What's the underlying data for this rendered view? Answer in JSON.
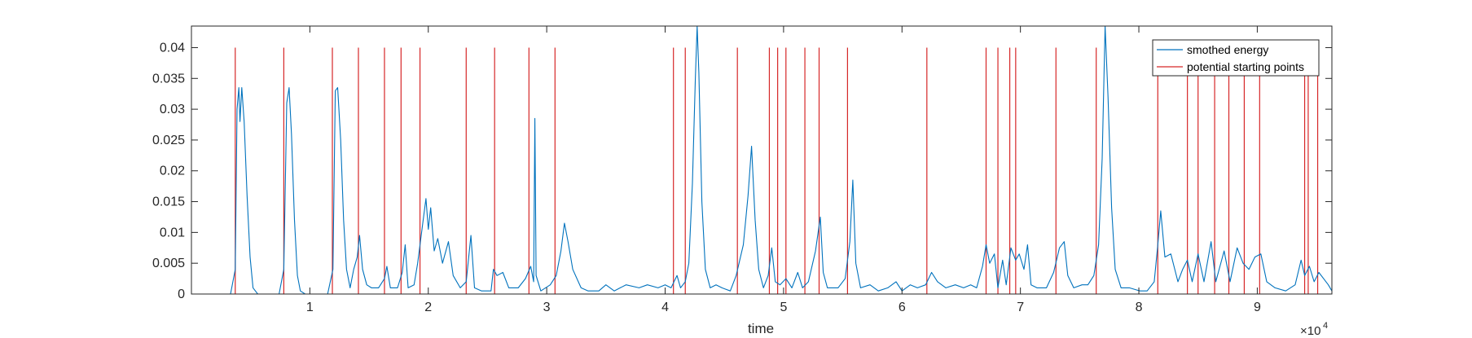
{
  "chart_data": {
    "type": "line",
    "xlabel": "time",
    "x_exponent_label": {
      "base": "×10",
      "exponent": "4"
    },
    "xlim": [
      0,
      96300
    ],
    "ylim": [
      0,
      0.0435
    ],
    "grid": false,
    "legend_position": "top-right",
    "x_ticks": [
      10000,
      20000,
      30000,
      40000,
      50000,
      60000,
      70000,
      80000,
      90000
    ],
    "x_tick_labels": [
      "1",
      "2",
      "3",
      "4",
      "5",
      "6",
      "7",
      "8",
      "9"
    ],
    "y_ticks": [
      0,
      0.005,
      0.01,
      0.015,
      0.02,
      0.025,
      0.03,
      0.035,
      0.04
    ],
    "y_tick_labels": [
      "0",
      "0.005",
      "0.01",
      "0.015",
      "0.02",
      "0.025",
      "0.03",
      "0.035",
      "0.04"
    ],
    "series": [
      {
        "name": "smothed energy",
        "color": "#0072BD",
        "kind": "line",
        "points": [
          [
            0,
            0
          ],
          [
            3300,
            0
          ],
          [
            3700,
            0.004
          ],
          [
            3850,
            0.03
          ],
          [
            4000,
            0.0335
          ],
          [
            4100,
            0.028
          ],
          [
            4250,
            0.0335
          ],
          [
            4450,
            0.028
          ],
          [
            4700,
            0.016
          ],
          [
            4950,
            0.006
          ],
          [
            5200,
            0.001
          ],
          [
            5600,
            0
          ],
          [
            7400,
            0
          ],
          [
            7800,
            0.004
          ],
          [
            8050,
            0.031
          ],
          [
            8250,
            0.0335
          ],
          [
            8450,
            0.026
          ],
          [
            8700,
            0.012
          ],
          [
            8950,
            0.003
          ],
          [
            9200,
            0.0005
          ],
          [
            9600,
            0
          ],
          [
            11500,
            0
          ],
          [
            11950,
            0.004
          ],
          [
            12150,
            0.033
          ],
          [
            12350,
            0.0335
          ],
          [
            12600,
            0.025
          ],
          [
            12850,
            0.012
          ],
          [
            13100,
            0.004
          ],
          [
            13400,
            0.001
          ],
          [
            13700,
            0.004
          ],
          [
            14000,
            0.006
          ],
          [
            14200,
            0.0095
          ],
          [
            14450,
            0.004
          ],
          [
            14800,
            0.0015
          ],
          [
            15200,
            0.001
          ],
          [
            15800,
            0.001
          ],
          [
            16300,
            0.0025
          ],
          [
            16500,
            0.0045
          ],
          [
            16800,
            0.001
          ],
          [
            17400,
            0.001
          ],
          [
            17800,
            0.0035
          ],
          [
            18050,
            0.008
          ],
          [
            18300,
            0.001
          ],
          [
            18800,
            0.0015
          ],
          [
            19100,
            0.005
          ],
          [
            19500,
            0.011
          ],
          [
            19800,
            0.0155
          ],
          [
            20000,
            0.0105
          ],
          [
            20200,
            0.014
          ],
          [
            20500,
            0.007
          ],
          [
            20800,
            0.009
          ],
          [
            21200,
            0.005
          ],
          [
            21700,
            0.0085
          ],
          [
            22100,
            0.003
          ],
          [
            22700,
            0.001
          ],
          [
            23200,
            0.002
          ],
          [
            23600,
            0.0095
          ],
          [
            23900,
            0.001
          ],
          [
            24500,
            0.0005
          ],
          [
            25300,
            0.0005
          ],
          [
            25500,
            0.004
          ],
          [
            25800,
            0.003
          ],
          [
            26300,
            0.0035
          ],
          [
            26800,
            0.001
          ],
          [
            27600,
            0.001
          ],
          [
            28200,
            0.0025
          ],
          [
            28650,
            0.0045
          ],
          [
            28900,
            0.002
          ],
          [
            29000,
            0.0285
          ],
          [
            29100,
            0.003
          ],
          [
            29500,
            0.0005
          ],
          [
            30300,
            0.0015
          ],
          [
            30800,
            0.003
          ],
          [
            31200,
            0.007
          ],
          [
            31500,
            0.0115
          ],
          [
            31800,
            0.0085
          ],
          [
            32200,
            0.004
          ],
          [
            32900,
            0.001
          ],
          [
            33500,
            0.0005
          ],
          [
            34400,
            0.0005
          ],
          [
            35000,
            0.0015
          ],
          [
            35700,
            0.0005
          ],
          [
            36700,
            0.0015
          ],
          [
            37800,
            0.001
          ],
          [
            38500,
            0.0015
          ],
          [
            39400,
            0.001
          ],
          [
            40000,
            0.0015
          ],
          [
            40500,
            0.001
          ],
          [
            41000,
            0.003
          ],
          [
            41300,
            0.001
          ],
          [
            41700,
            0.002
          ],
          [
            42000,
            0.005
          ],
          [
            42300,
            0.018
          ],
          [
            42550,
            0.035
          ],
          [
            42700,
            0.0435
          ],
          [
            42850,
            0.036
          ],
          [
            43100,
            0.015
          ],
          [
            43400,
            0.004
          ],
          [
            43800,
            0.001
          ],
          [
            44300,
            0.0015
          ],
          [
            44800,
            0.001
          ],
          [
            45500,
            0.0005
          ],
          [
            46000,
            0.003
          ],
          [
            46600,
            0.008
          ],
          [
            47000,
            0.016
          ],
          [
            47300,
            0.024
          ],
          [
            47600,
            0.012
          ],
          [
            47900,
            0.004
          ],
          [
            48300,
            0.001
          ],
          [
            48700,
            0.003
          ],
          [
            49000,
            0.0075
          ],
          [
            49300,
            0.002
          ],
          [
            49700,
            0.0015
          ],
          [
            50200,
            0.0025
          ],
          [
            50700,
            0.001
          ],
          [
            51200,
            0.0035
          ],
          [
            51600,
            0.001
          ],
          [
            52100,
            0.002
          ],
          [
            52700,
            0.007
          ],
          [
            53100,
            0.0125
          ],
          [
            53350,
            0.0035
          ],
          [
            53700,
            0.001
          ],
          [
            54600,
            0.001
          ],
          [
            55200,
            0.0025
          ],
          [
            55600,
            0.0085
          ],
          [
            55850,
            0.0185
          ],
          [
            56100,
            0.005
          ],
          [
            56500,
            0.001
          ],
          [
            57300,
            0.0015
          ],
          [
            58000,
            0.0005
          ],
          [
            58800,
            0.001
          ],
          [
            59500,
            0.002
          ],
          [
            60000,
            0.0005
          ],
          [
            60700,
            0.0015
          ],
          [
            61300,
            0.001
          ],
          [
            62000,
            0.0015
          ],
          [
            62500,
            0.0035
          ],
          [
            63000,
            0.002
          ],
          [
            63700,
            0.001
          ],
          [
            64500,
            0.0015
          ],
          [
            65200,
            0.001
          ],
          [
            65800,
            0.0015
          ],
          [
            66300,
            0.001
          ],
          [
            66800,
            0.0045
          ],
          [
            67100,
            0.008
          ],
          [
            67400,
            0.005
          ],
          [
            67800,
            0.0065
          ],
          [
            68100,
            0.001
          ],
          [
            68500,
            0.0055
          ],
          [
            68800,
            0.0015
          ],
          [
            69200,
            0.0075
          ],
          [
            69600,
            0.0055
          ],
          [
            69900,
            0.0065
          ],
          [
            70300,
            0.004
          ],
          [
            70600,
            0.008
          ],
          [
            70900,
            0.0015
          ],
          [
            71400,
            0.001
          ],
          [
            72200,
            0.001
          ],
          [
            72800,
            0.0035
          ],
          [
            73300,
            0.0075
          ],
          [
            73700,
            0.0085
          ],
          [
            74000,
            0.003
          ],
          [
            74500,
            0.001
          ],
          [
            75200,
            0.0015
          ],
          [
            75700,
            0.0015
          ],
          [
            76200,
            0.003
          ],
          [
            76600,
            0.008
          ],
          [
            76900,
            0.022
          ],
          [
            77150,
            0.0435
          ],
          [
            77400,
            0.032
          ],
          [
            77700,
            0.014
          ],
          [
            78000,
            0.004
          ],
          [
            78500,
            0.001
          ],
          [
            79200,
            0.001
          ],
          [
            80100,
            0.0005
          ],
          [
            80700,
            0.0005
          ],
          [
            81300,
            0.002
          ],
          [
            81600,
            0.008
          ],
          [
            81850,
            0.0135
          ],
          [
            82200,
            0.006
          ],
          [
            82700,
            0.0065
          ],
          [
            83300,
            0.002
          ],
          [
            83700,
            0.004
          ],
          [
            84100,
            0.0055
          ],
          [
            84500,
            0.002
          ],
          [
            85000,
            0.0065
          ],
          [
            85500,
            0.002
          ],
          [
            86100,
            0.0085
          ],
          [
            86500,
            0.002
          ],
          [
            87200,
            0.007
          ],
          [
            87700,
            0.002
          ],
          [
            88300,
            0.0075
          ],
          [
            88800,
            0.005
          ],
          [
            89300,
            0.004
          ],
          [
            89800,
            0.006
          ],
          [
            90300,
            0.0065
          ],
          [
            90800,
            0.002
          ],
          [
            91500,
            0.001
          ],
          [
            92400,
            0.0005
          ],
          [
            93200,
            0.0015
          ],
          [
            93700,
            0.0055
          ],
          [
            94000,
            0.003
          ],
          [
            94400,
            0.0045
          ],
          [
            94800,
            0.002
          ],
          [
            95200,
            0.0035
          ],
          [
            95600,
            0.0025
          ],
          [
            96000,
            0.0015
          ],
          [
            96300,
            0.0005
          ]
        ]
      },
      {
        "name": "potential starting points",
        "color": "#D62728",
        "kind": "vlines",
        "y_top": 0.04,
        "x": [
          3700,
          7800,
          11900,
          14100,
          16300,
          17700,
          19300,
          23200,
          25600,
          28500,
          30700,
          40700,
          41700,
          46100,
          48800,
          49500,
          50200,
          51800,
          53000,
          55400,
          62100,
          67100,
          68100,
          69100,
          69600,
          73000,
          76400,
          81600,
          84100,
          85000,
          86400,
          87600,
          88900,
          90200,
          94000,
          94300,
          95100
        ]
      }
    ]
  }
}
